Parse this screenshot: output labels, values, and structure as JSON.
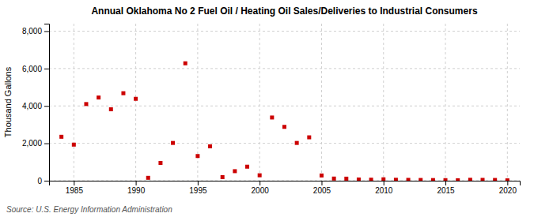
{
  "chart_data": {
    "type": "scatter",
    "title": "Annual Oklahoma No 2 Fuel Oil / Heating Oil Sales/Deliveries to Industrial Consumers",
    "ylabel": "Thousand Gallons",
    "annotations": [
      "Source: U.S. Energy Information Administration"
    ],
    "x": [
      1984,
      1985,
      1986,
      1987,
      1988,
      1989,
      1990,
      1991,
      1992,
      1993,
      1994,
      1995,
      1996,
      1997,
      1998,
      1999,
      2000,
      2001,
      2002,
      2003,
      2004,
      2005,
      2006,
      2007,
      2008,
      2009,
      2010,
      2011,
      2012,
      2013,
      2014,
      2015,
      2016,
      2017,
      2018,
      2019,
      2020
    ],
    "values": [
      2350,
      1930,
      4100,
      4450,
      3820,
      4680,
      4380,
      155,
      950,
      2020,
      6280,
      1320,
      1840,
      190,
      510,
      750,
      290,
      3380,
      2880,
      2020,
      2320,
      280,
      115,
      110,
      65,
      55,
      75,
      50,
      45,
      40,
      35,
      30,
      25,
      50,
      45,
      40,
      20
    ],
    "color": "#cc0000",
    "marker": "square",
    "xlim": [
      1983,
      2021
    ],
    "xticks": [
      1985,
      1990,
      1995,
      2000,
      2005,
      2010,
      2015,
      2020
    ],
    "ylim": [
      0,
      8400
    ],
    "yticks": [
      0,
      {
        "value": 2000,
        "label": "2,000"
      },
      {
        "value": 4000,
        "label": "4,000"
      },
      {
        "value": 6000,
        "label": "6,000"
      },
      {
        "value": 8000,
        "label": "8,000"
      }
    ],
    "grid": true
  }
}
